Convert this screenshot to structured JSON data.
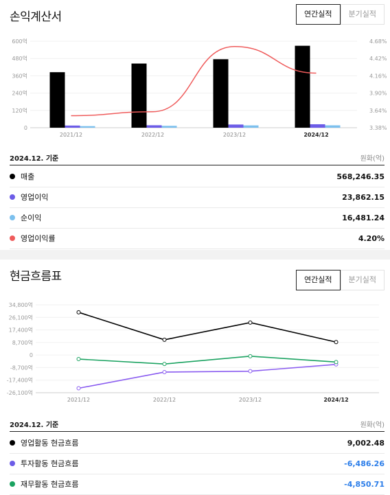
{
  "income": {
    "title": "손익계산서",
    "toggle": {
      "annual": "연간실적",
      "quarterly": "분기실적"
    },
    "basis": "2024.12. 기준",
    "unit": "원화(억)",
    "rows": [
      {
        "label": "매출",
        "value": "568,246.35",
        "color": "#000000"
      },
      {
        "label": "영업이익",
        "value": "23,862.15",
        "color": "#6c5ce7"
      },
      {
        "label": "순이익",
        "value": "16,481.24",
        "color": "#7cc0ee"
      },
      {
        "label": "영업이익률",
        "value": "4.20%",
        "color": "#ef5b5b"
      }
    ]
  },
  "cashflow": {
    "title": "현금흐름표",
    "toggle": {
      "annual": "연간실적",
      "quarterly": "분기실적"
    },
    "basis": "2024.12. 기준",
    "unit": "원화(억)",
    "rows": [
      {
        "label": "영업활동 현금흐름",
        "value": "9,002.48",
        "color": "#000000",
        "negative": false
      },
      {
        "label": "투자활동 현금흐름",
        "value": "-6,486.26",
        "color": "#6c5ce7",
        "negative": true
      },
      {
        "label": "재무활동 현금흐름",
        "value": "-4,850.71",
        "color": "#1aa260",
        "negative": true
      }
    ]
  },
  "chart_data": [
    {
      "type": "bar",
      "categories": [
        "2021/12",
        "2022/12",
        "2023/12",
        "2024/12"
      ],
      "y_ticks": [
        "0",
        "120억",
        "240억",
        "360억",
        "480억",
        "600억"
      ],
      "y_ticks_right": [
        "3.38%",
        "3.64%",
        "3.90%",
        "4.16%",
        "4.42%",
        "4.68%"
      ],
      "ylim": [
        0,
        600000
      ],
      "ylim_right": [
        3.38,
        4.68
      ],
      "series": [
        {
          "name": "매출",
          "values": [
            385000,
            445000,
            475000,
            568246
          ],
          "color": "#000000"
        },
        {
          "name": "영업이익",
          "values": [
            15000,
            17000,
            22000,
            23862
          ],
          "color": "#6c5ce7"
        },
        {
          "name": "순이익",
          "values": [
            11000,
            13000,
            16000,
            16481
          ],
          "color": "#7cc0ee"
        },
        {
          "name": "영업이익률",
          "values": [
            3.56,
            3.62,
            4.6,
            4.2
          ],
          "color": "#ef5b5b",
          "axis": "right"
        }
      ]
    },
    {
      "type": "line",
      "categories": [
        "2021/12",
        "2022/12",
        "2023/12",
        "2024/12"
      ],
      "y_ticks": [
        "34,800억",
        "26,100억",
        "17,400억",
        "8,700억",
        "0",
        "-8,700억",
        "-17,400억",
        "-26,100억"
      ],
      "ylim": [
        -26100,
        34800
      ],
      "series": [
        {
          "name": "영업활동 현금흐름",
          "values": [
            29600,
            10600,
            22500,
            9002
          ],
          "color": "#000000"
        },
        {
          "name": "투자활동 현금흐름",
          "values": [
            -23000,
            -11800,
            -11200,
            -6486
          ],
          "color": "#8a5cf0"
        },
        {
          "name": "재무활동 현금흐름",
          "values": [
            -2800,
            -6200,
            -800,
            -4851
          ],
          "color": "#1aa260"
        }
      ]
    }
  ]
}
